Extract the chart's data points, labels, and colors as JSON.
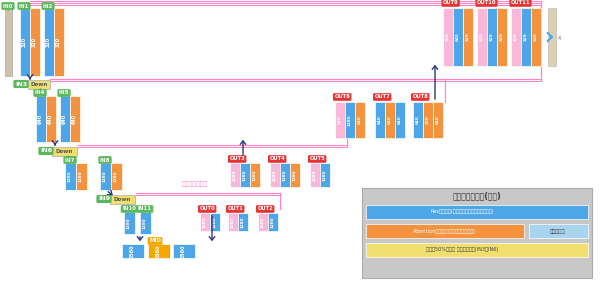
{
  "bg": "#ffffff",
  "res": "#4da6e8",
  "attn": "#f5923e",
  "down_color": "#f0de6e",
  "green": "#5cb85c",
  "red": "#e53535",
  "mid_color": "#f5a800",
  "pink": "#ff85c8",
  "pink_block": "#f9b8da",
  "arrow_dark": "#2a3580",
  "beige": "#ddd0b0",
  "legend_bg": "#c8c8c8",
  "legend_title": "ブロックの種類(色別)",
  "leg1": "Resブロック(特徴サーチ＆ノイズ情報追加)",
  "leg2": "Attentionブロック(テキスト情報追加)",
  "leg3": "サイズ50%縮小＆ 特徴数２倍化(IN3、IN6)",
  "leg_special": "特徴サーチ",
  "note": "情報の受け渡し"
}
